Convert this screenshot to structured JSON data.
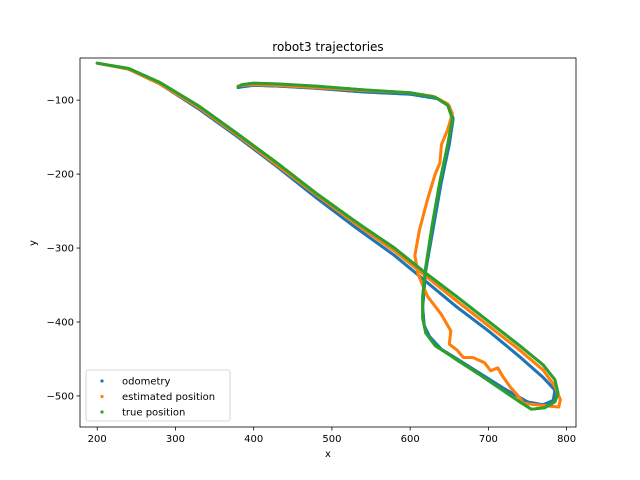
{
  "chart_data": {
    "type": "scatter",
    "title": "robot3 trajectories",
    "xlabel": "x",
    "ylabel": "y",
    "xlim": [
      178,
      812
    ],
    "ylim": [
      -542,
      -43
    ],
    "xticks": [
      200,
      300,
      400,
      500,
      600,
      700,
      800
    ],
    "yticks": [
      -100,
      -200,
      -300,
      -400,
      -500
    ],
    "xtick_labels": [
      "200",
      "300",
      "400",
      "500",
      "600",
      "700",
      "800"
    ],
    "ytick_labels": [
      "−100",
      "−200",
      "−300",
      "−400",
      "−500"
    ],
    "grid": false,
    "legend_position": "lower-left",
    "series": [
      {
        "name": "odometry",
        "color": "#1f77b4",
        "points": [
          [
            200,
            -50
          ],
          [
            240,
            -58
          ],
          [
            280,
            -78
          ],
          [
            330,
            -112
          ],
          [
            380,
            -150
          ],
          [
            430,
            -190
          ],
          [
            480,
            -232
          ],
          [
            530,
            -272
          ],
          [
            580,
            -310
          ],
          [
            620,
            -345
          ],
          [
            660,
            -380
          ],
          [
            700,
            -412
          ],
          [
            740,
            -447
          ],
          [
            770,
            -475
          ],
          [
            785,
            -492
          ],
          [
            783,
            -506
          ],
          [
            770,
            -512
          ],
          [
            750,
            -508
          ],
          [
            720,
            -490
          ],
          [
            690,
            -470
          ],
          [
            660,
            -450
          ],
          [
            640,
            -437
          ],
          [
            625,
            -420
          ],
          [
            618,
            -405
          ],
          [
            616,
            -380
          ],
          [
            620,
            -330
          ],
          [
            630,
            -270
          ],
          [
            640,
            -210
          ],
          [
            650,
            -160
          ],
          [
            655,
            -125
          ],
          [
            650,
            -108
          ],
          [
            635,
            -98
          ],
          [
            600,
            -92
          ],
          [
            540,
            -89
          ],
          [
            480,
            -84
          ],
          [
            430,
            -81
          ],
          [
            400,
            -80
          ],
          [
            385,
            -82
          ],
          [
            380,
            -83
          ]
        ]
      },
      {
        "name": "estimated position",
        "color": "#ff7f0e",
        "points": [
          [
            200,
            -50
          ],
          [
            240,
            -58
          ],
          [
            280,
            -78
          ],
          [
            330,
            -110
          ],
          [
            380,
            -148
          ],
          [
            430,
            -188
          ],
          [
            480,
            -228
          ],
          [
            530,
            -267
          ],
          [
            580,
            -304
          ],
          [
            620,
            -338
          ],
          [
            660,
            -372
          ],
          [
            700,
            -405
          ],
          [
            740,
            -438
          ],
          [
            770,
            -465
          ],
          [
            785,
            -487
          ],
          [
            792,
            -505
          ],
          [
            790,
            -515
          ],
          [
            770,
            -513
          ],
          [
            745,
            -510
          ],
          [
            738,
            -500
          ],
          [
            728,
            -488
          ],
          [
            718,
            -473
          ],
          [
            712,
            -462
          ],
          [
            703,
            -466
          ],
          [
            695,
            -455
          ],
          [
            680,
            -448
          ],
          [
            668,
            -448
          ],
          [
            660,
            -438
          ],
          [
            650,
            -430
          ],
          [
            652,
            -412
          ],
          [
            640,
            -390
          ],
          [
            622,
            -365
          ],
          [
            610,
            -335
          ],
          [
            606,
            -310
          ],
          [
            612,
            -275
          ],
          [
            622,
            -235
          ],
          [
            632,
            -200
          ],
          [
            638,
            -185
          ],
          [
            640,
            -160
          ],
          [
            648,
            -140
          ],
          [
            654,
            -118
          ],
          [
            648,
            -105
          ],
          [
            630,
            -95
          ],
          [
            600,
            -90
          ],
          [
            540,
            -87
          ],
          [
            480,
            -83
          ],
          [
            430,
            -80
          ],
          [
            400,
            -79
          ],
          [
            385,
            -80
          ],
          [
            380,
            -81
          ]
        ]
      },
      {
        "name": "true position",
        "color": "#2ca02c",
        "points": [
          [
            200,
            -50
          ],
          [
            240,
            -57
          ],
          [
            280,
            -76
          ],
          [
            330,
            -108
          ],
          [
            380,
            -146
          ],
          [
            430,
            -185
          ],
          [
            480,
            -226
          ],
          [
            530,
            -264
          ],
          [
            580,
            -300
          ],
          [
            620,
            -334
          ],
          [
            660,
            -366
          ],
          [
            700,
            -399
          ],
          [
            740,
            -432
          ],
          [
            770,
            -458
          ],
          [
            785,
            -478
          ],
          [
            789,
            -496
          ],
          [
            785,
            -508
          ],
          [
            772,
            -516
          ],
          [
            755,
            -518
          ],
          [
            740,
            -508
          ],
          [
            715,
            -490
          ],
          [
            690,
            -472
          ],
          [
            665,
            -455
          ],
          [
            648,
            -443
          ],
          [
            632,
            -432
          ],
          [
            620,
            -415
          ],
          [
            616,
            -395
          ],
          [
            616,
            -365
          ],
          [
            620,
            -325
          ],
          [
            628,
            -270
          ],
          [
            638,
            -210
          ],
          [
            648,
            -160
          ],
          [
            654,
            -125
          ],
          [
            648,
            -107
          ],
          [
            632,
            -96
          ],
          [
            600,
            -90
          ],
          [
            540,
            -86
          ],
          [
            480,
            -81
          ],
          [
            430,
            -78
          ],
          [
            400,
            -77
          ],
          [
            385,
            -79
          ],
          [
            380,
            -82
          ]
        ]
      }
    ]
  }
}
